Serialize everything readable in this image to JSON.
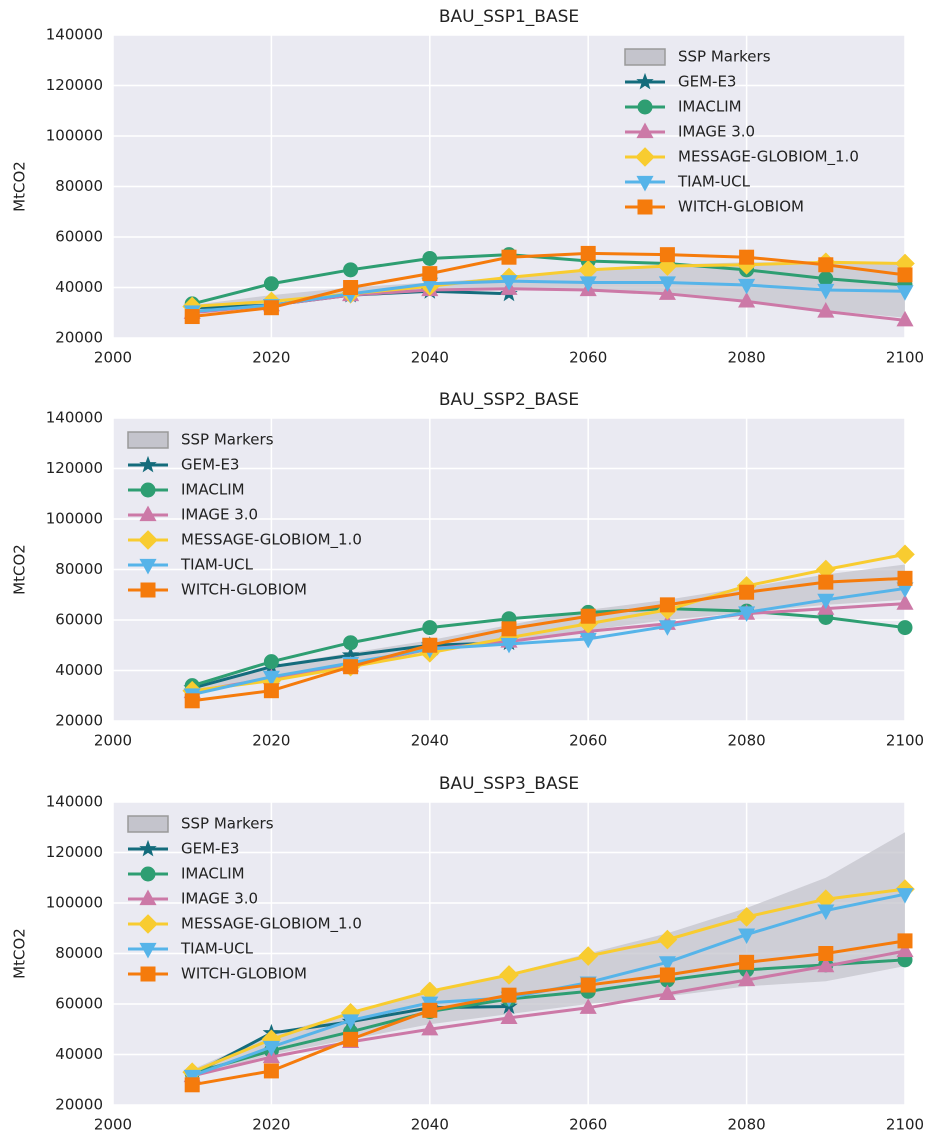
{
  "chart_data": [
    {
      "type": "line",
      "title": "BAU_SSP1_BASE",
      "y_label": "MtCO2",
      "x": [
        2010,
        2020,
        2030,
        2040,
        2050,
        2060,
        2070,
        2080,
        2090,
        2100
      ],
      "xlim": [
        2000,
        2100
      ],
      "xticks": [
        2000,
        2020,
        2040,
        2060,
        2080,
        2100
      ],
      "ylim": [
        20000,
        140000
      ],
      "yticks": [
        20000,
        40000,
        60000,
        80000,
        100000,
        120000,
        140000
      ],
      "grid": true,
      "legend": "upper right",
      "band": {
        "name": "SSP Markers",
        "color": "#c4c4cc",
        "lower": [
          30000,
          33000,
          37000,
          39000,
          39500,
          39000,
          37500,
          34500,
          31000,
          28000
        ],
        "upper": [
          33000,
          37000,
          40000,
          42000,
          44000,
          47000,
          49000,
          50000,
          50000,
          50000
        ]
      },
      "series": [
        {
          "name": "GEM-E3",
          "color": "#146c7c",
          "marker": "star",
          "values": [
            32000,
            33000,
            37000,
            38500,
            37500,
            null,
            null,
            null,
            null,
            null
          ]
        },
        {
          "name": "IMACLIM",
          "color": "#2e9e72",
          "marker": "circle",
          "values": [
            33500,
            41500,
            47000,
            51500,
            53000,
            50500,
            49500,
            47000,
            43500,
            41000
          ]
        },
        {
          "name": "IMAGE 3.0",
          "color": "#cc79a7",
          "marker": "triangle-up",
          "values": [
            30000,
            33000,
            37000,
            39000,
            39500,
            39000,
            37500,
            34500,
            30500,
            27000
          ]
        },
        {
          "name": "MESSAGE-GLOBIOM_1.0",
          "color": "#f8cc30",
          "marker": "diamond",
          "values": [
            32500,
            34500,
            37500,
            40500,
            44000,
            47000,
            48500,
            49000,
            50000,
            49500
          ]
        },
        {
          "name": "TIAM-UCL",
          "color": "#56b4e9",
          "marker": "triangle-down",
          "values": [
            30500,
            33000,
            37500,
            41500,
            42500,
            42000,
            42000,
            41000,
            39000,
            38500
          ]
        },
        {
          "name": "WITCH-GLOBIOM",
          "color": "#f57b0c",
          "marker": "square",
          "values": [
            28500,
            32000,
            40000,
            45500,
            52000,
            53500,
            53000,
            52000,
            49000,
            45000
          ]
        }
      ]
    },
    {
      "type": "line",
      "title": "BAU_SSP2_BASE",
      "y_label": "MtCO2",
      "x": [
        2010,
        2020,
        2030,
        2040,
        2050,
        2060,
        2070,
        2080,
        2090,
        2100
      ],
      "xlim": [
        2000,
        2100
      ],
      "xticks": [
        2000,
        2020,
        2040,
        2060,
        2080,
        2100
      ],
      "ylim": [
        20000,
        140000
      ],
      "yticks": [
        20000,
        40000,
        60000,
        80000,
        100000,
        120000,
        140000
      ],
      "grid": true,
      "legend": "upper left",
      "band": {
        "name": "SSP Markers",
        "color": "#c4c4cc",
        "lower": [
          31000,
          36000,
          42000,
          48000,
          52000,
          56000,
          60000,
          63000,
          66000,
          68000
        ],
        "upper": [
          34000,
          42000,
          47000,
          52000,
          58000,
          64000,
          68000,
          73000,
          78000,
          82000
        ]
      },
      "series": [
        {
          "name": "GEM-E3",
          "color": "#146c7c",
          "marker": "star",
          "values": [
            33000,
            41500,
            46000,
            50000,
            51000,
            null,
            null,
            null,
            null,
            null
          ]
        },
        {
          "name": "IMACLIM",
          "color": "#2e9e72",
          "marker": "circle",
          "values": [
            34000,
            43500,
            51000,
            57000,
            60500,
            63000,
            64500,
            63500,
            61000,
            57000
          ]
        },
        {
          "name": "IMAGE 3.0",
          "color": "#cc79a7",
          "marker": "triangle-up",
          "values": [
            31500,
            37000,
            42000,
            48500,
            51500,
            55500,
            58500,
            62500,
            64500,
            66500
          ]
        },
        {
          "name": "MESSAGE-GLOBIOM_1.0",
          "color": "#f8cc30",
          "marker": "diamond",
          "values": [
            32000,
            36000,
            41500,
            47000,
            53000,
            58500,
            64000,
            73500,
            80000,
            86000
          ]
        },
        {
          "name": "TIAM-UCL",
          "color": "#56b4e9",
          "marker": "triangle-down",
          "values": [
            30500,
            37500,
            43000,
            48500,
            50500,
            52500,
            57500,
            63000,
            68000,
            72500
          ]
        },
        {
          "name": "WITCH-GLOBIOM",
          "color": "#f57b0c",
          "marker": "square",
          "values": [
            28000,
            32000,
            41500,
            50000,
            56500,
            61500,
            66000,
            71000,
            75000,
            76500
          ]
        }
      ]
    },
    {
      "type": "line",
      "title": "BAU_SSP3_BASE",
      "y_label": "MtCO2",
      "x": [
        2010,
        2020,
        2030,
        2040,
        2050,
        2060,
        2070,
        2080,
        2090,
        2100
      ],
      "xlim": [
        2000,
        2100
      ],
      "xticks": [
        2000,
        2020,
        2040,
        2060,
        2080,
        2100
      ],
      "ylim": [
        20000,
        140000
      ],
      "yticks": [
        20000,
        40000,
        60000,
        80000,
        100000,
        120000,
        140000
      ],
      "grid": true,
      "legend": "upper left",
      "band": {
        "name": "SSP Markers",
        "color": "#c4c4cc",
        "lower": [
          31000,
          40000,
          46000,
          52000,
          56000,
          60000,
          63000,
          67000,
          69000,
          75000
        ],
        "upper": [
          34000,
          48000,
          56000,
          65000,
          72000,
          80000,
          88000,
          98000,
          110000,
          128000
        ]
      },
      "series": [
        {
          "name": "GEM-E3",
          "color": "#146c7c",
          "marker": "star",
          "values": [
            32000,
            48500,
            53000,
            58500,
            59000,
            null,
            null,
            null,
            null,
            null
          ]
        },
        {
          "name": "IMACLIM",
          "color": "#2e9e72",
          "marker": "circle",
          "values": [
            32500,
            41500,
            49000,
            57000,
            62000,
            65000,
            69500,
            73500,
            75500,
            77500
          ]
        },
        {
          "name": "IMAGE 3.0",
          "color": "#cc79a7",
          "marker": "triangle-up",
          "values": [
            31500,
            39000,
            45000,
            50000,
            54500,
            58500,
            64000,
            69500,
            75000,
            81000
          ]
        },
        {
          "name": "MESSAGE-GLOBIOM_1.0",
          "color": "#f8cc30",
          "marker": "diamond",
          "values": [
            33000,
            46000,
            56500,
            65000,
            71500,
            79000,
            85500,
            94500,
            101500,
            105500
          ]
        },
        {
          "name": "TIAM-UCL",
          "color": "#56b4e9",
          "marker": "triangle-down",
          "values": [
            31500,
            43000,
            53500,
            60500,
            62500,
            68500,
            76500,
            87500,
            97000,
            103500
          ]
        },
        {
          "name": "WITCH-GLOBIOM",
          "color": "#f57b0c",
          "marker": "square",
          "values": [
            28000,
            33500,
            46000,
            57500,
            63500,
            67500,
            71500,
            76500,
            80000,
            85000
          ]
        }
      ]
    }
  ]
}
